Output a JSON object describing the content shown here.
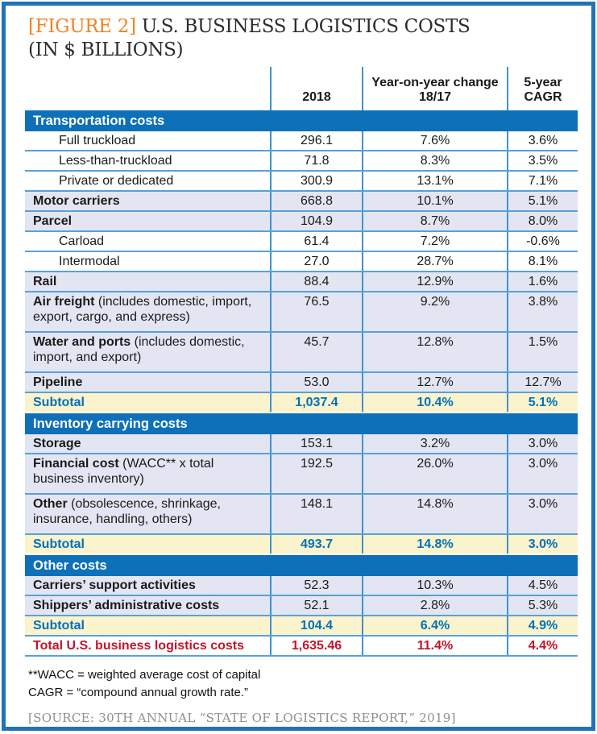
{
  "figure": {
    "tag": "[FIGURE 2]",
    "title": "U.S. BUSINESS LOGISTICS COSTS",
    "subtitle": "(IN $ BILLIONS)"
  },
  "chart_data": {
    "type": "table",
    "columns": [
      "2018",
      "Year-on-year change 18/17",
      "5-year CAGR"
    ],
    "sections": [
      {
        "header": "Transportation costs",
        "rows": [
          {
            "label": "Full truckload",
            "kind": "indent",
            "values": [
              "296.1",
              "7.6%",
              "3.6%"
            ]
          },
          {
            "label": "Less-than-truckload",
            "kind": "indent",
            "values": [
              "71.8",
              "8.3%",
              "3.5%"
            ]
          },
          {
            "label": "Private or dedicated",
            "kind": "indent",
            "values": [
              "300.9",
              "13.1%",
              "7.1%"
            ]
          },
          {
            "label": "Motor carriers",
            "kind": "bold",
            "values": [
              "668.8",
              "10.1%",
              "5.1%"
            ]
          },
          {
            "label": "Parcel",
            "kind": "bold",
            "values": [
              "104.9",
              "8.7%",
              "8.0%"
            ]
          },
          {
            "label": "Carload",
            "kind": "indent",
            "values": [
              "61.4",
              "7.2%",
              "-0.6%"
            ]
          },
          {
            "label": "Intermodal",
            "kind": "indent",
            "values": [
              "27.0",
              "28.7%",
              "8.1%"
            ]
          },
          {
            "label": "Rail",
            "kind": "bold",
            "values": [
              "88.4",
              "12.9%",
              "1.6%"
            ]
          },
          {
            "label": "Air freight",
            "note": " (includes domestic, import, export, cargo, and express)",
            "kind": "bold",
            "values": [
              "76.5",
              "9.2%",
              "3.8%"
            ]
          },
          {
            "label": "Water and ports",
            "note": " (includes domestic, import, and export)",
            "kind": "bold",
            "values": [
              "45.7",
              "12.8%",
              "1.5%"
            ]
          },
          {
            "label": "Pipeline",
            "kind": "bold",
            "values": [
              "53.0",
              "12.7%",
              "12.7%"
            ]
          },
          {
            "label": "Subtotal",
            "kind": "subtotal",
            "values": [
              "1,037.4",
              "10.4%",
              "5.1%"
            ]
          }
        ]
      },
      {
        "header": "Inventory carrying costs",
        "rows": [
          {
            "label": "Storage",
            "kind": "bold",
            "values": [
              "153.1",
              "3.2%",
              "3.0%"
            ]
          },
          {
            "label": "Financial cost",
            "note": " (WACC** x total business inventory)",
            "kind": "bold",
            "values": [
              "192.5",
              "26.0%",
              "3.0%"
            ]
          },
          {
            "label": "Other",
            "note": " (obsolescence, shrinkage, insurance, handling, others)",
            "kind": "bold",
            "values": [
              "148.1",
              "14.8%",
              "3.0%"
            ]
          },
          {
            "label": "Subtotal",
            "kind": "subtotal",
            "values": [
              "493.7",
              "14.8%",
              "3.0%"
            ]
          }
        ]
      },
      {
        "header": "Other costs",
        "rows": [
          {
            "label": "Carriers’ support activities",
            "kind": "bold",
            "values": [
              "52.3",
              "10.3%",
              "4.5%"
            ]
          },
          {
            "label": "Shippers’ administrative costs",
            "kind": "bold",
            "values": [
              "52.1",
              "2.8%",
              "5.3%"
            ]
          },
          {
            "label": "Subtotal",
            "kind": "subtotal",
            "values": [
              "104.4",
              "6.4%",
              "4.9%"
            ]
          },
          {
            "label": "Total U.S. business logistics costs",
            "kind": "total",
            "values": [
              "1,635.46",
              "11.4%",
              "4.4%"
            ]
          }
        ]
      }
    ]
  },
  "footnotes": [
    "**WACC = weighted average cost of capital",
    "CAGR = “compound annual growth rate.”"
  ],
  "source": "[SOURCE: 30TH ANNUAL “STATE OF LOGISTICS REPORT,” 2019]",
  "colors": {
    "frame": "#2173b9",
    "section_bar": "#0d70b8",
    "grid_line": "#58a1d7",
    "col_line": "#3e92cf",
    "row_alt": "#e3e6f2",
    "subtotal_bg": "#fbf3cb",
    "subtotal_text": "#0071bc",
    "total_text": "#c3142b",
    "accent_orange": "#f58220",
    "title_color": "#2b2b2b",
    "source_color": "#8f9086"
  }
}
